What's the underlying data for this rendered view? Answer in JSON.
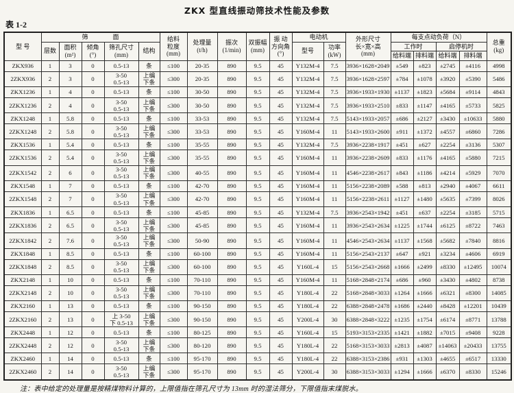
{
  "document": {
    "title": "ZKX 型直线振动筛技术性能及参数",
    "table_label": "表 1-2",
    "note": "注：表中给定的处理量是按精煤物料计算的，上限值指在筛孔尺寸为 13mm 时的湿法筛分，下限值指末煤脱水。"
  },
  "table": {
    "headers": {
      "model": "型  号",
      "sieve_group": "筛　　　　面",
      "layers": "层数",
      "area": "面积\n(m²)",
      "incline": "倾角\n(°)",
      "mesh": "筛孔尺寸\n(mm)",
      "structure": "结构",
      "feed_size": "给料\n粒度\n(mm)",
      "capacity": "处理量\n(t/h)",
      "frequency": "振次\n(1/min)",
      "amplitude": "双振幅\n(mm)",
      "direction_angle": "振 动\n方向角\n(°)",
      "motor_group": "电动机",
      "motor_model": "型号",
      "motor_power": "功率\n(kW)",
      "dimensions": "外形尺寸\n长×宽×高\n(mm)",
      "load_group": "每支点动负荷（N）",
      "load_working": "工作时",
      "load_startstop": "启停机时",
      "feed_end_1": "给料端",
      "discharge_end_1": "排料端",
      "feed_end_2": "给料端",
      "discharge_end_2": "排料端",
      "total_weight": "总重\n(kg)"
    },
    "column_keys": [
      "model",
      "layers",
      "area",
      "incline",
      "mesh",
      "structure",
      "feed_size",
      "capacity",
      "frequency",
      "amplitude",
      "direction_angle",
      "motor_model",
      "motor_power",
      "dimensions",
      "work_feed_end",
      "work_discharge_end",
      "start_feed_end",
      "start_discharge_end",
      "total_weight"
    ],
    "rows": [
      [
        "ZKX936",
        "1",
        "3",
        "0",
        "0.5-13",
        "条",
        "≤100",
        "20-35",
        "890",
        "9.5",
        "45",
        "Y132M-4",
        "7.5",
        "3936×1628×2049",
        "±549",
        "±823",
        "±2745",
        "±4116",
        "4998"
      ],
      [
        "2ZKX936",
        "2",
        "3",
        "0",
        "3-50\n0.5-13",
        "上编\n下条",
        "≤300",
        "20-35",
        "890",
        "9.5",
        "45",
        "Y132M-4",
        "7.5",
        "3936×1628×2597",
        "±784",
        "±1078",
        "±3920",
        "±5390",
        "5486"
      ],
      [
        "ZKX1236",
        "1",
        "4",
        "0",
        "0.5-13",
        "条",
        "≤100",
        "30-50",
        "890",
        "9.5",
        "45",
        "Y132M-4",
        "7.5",
        "3936×1933×1930",
        "±1137",
        "±1823",
        "±5684",
        "±9114",
        "4843"
      ],
      [
        "2ZKX1236",
        "2",
        "4",
        "0",
        "3-50\n0.5-13",
        "上编\n下条",
        "≤300",
        "30-50",
        "890",
        "9.5",
        "45",
        "Y132M-4",
        "7.5",
        "3936×1933×2510",
        "±833",
        "±1147",
        "±4165",
        "±5733",
        "5825"
      ],
      [
        "ZKX1248",
        "1",
        "5.8",
        "0",
        "0.5-13",
        "条",
        "≤100",
        "33-53",
        "890",
        "9.5",
        "45",
        "Y132M-4",
        "7.5",
        "5143×1933×2057",
        "±686",
        "±2127",
        "±3430",
        "±10633",
        "5880"
      ],
      [
        "2ZKX1248",
        "2",
        "5.8",
        "0",
        "3-50\n0.5-13",
        "上编\n下条",
        "≤300",
        "33-53",
        "890",
        "9.5",
        "45",
        "Y160M-4",
        "11",
        "5143×1933×2600",
        "±911",
        "±1372",
        "±4557",
        "±6860",
        "7286"
      ],
      [
        "ZKX1536",
        "1",
        "5.4",
        "0",
        "0.5-13",
        "条",
        "≤100",
        "35-55",
        "890",
        "9.5",
        "45",
        "Y132M-4",
        "7.5",
        "3936×2238×1917",
        "±451",
        "±627",
        "±2254",
        "±3136",
        "5307"
      ],
      [
        "2ZKX1536",
        "2",
        "5.4",
        "0",
        "3-50\n0.5-13",
        "上编\n下条",
        "≤300",
        "35-55",
        "890",
        "9.5",
        "45",
        "Y160M-4",
        "11",
        "3936×2238×2609",
        "±833",
        "±1176",
        "±4165",
        "±5880",
        "7215"
      ],
      [
        "2ZKX1542",
        "2",
        "6",
        "0",
        "3-50\n0.5-13",
        "上编\n下条",
        "≤300",
        "40-55",
        "890",
        "9.5",
        "45",
        "Y160M-4",
        "11",
        "4546×2238×2617",
        "±843",
        "±1186",
        "±4214",
        "±5929",
        "7070"
      ],
      [
        "ZKX1548",
        "1",
        "7",
        "0",
        "0.5-13",
        "条",
        "≤100",
        "42-70",
        "890",
        "9.5",
        "45",
        "Y160M-4",
        "11",
        "5156×2238×2089",
        "±588",
        "±813",
        "±2940",
        "±4067",
        "6611"
      ],
      [
        "2ZKX1548",
        "2",
        "7",
        "0",
        "3-50\n0.5-13",
        "上编\n下条",
        "≤300",
        "42-70",
        "890",
        "9.5",
        "45",
        "Y160M-4",
        "11",
        "5156×2238×2611",
        "±1127",
        "±1480",
        "±5635",
        "±7399",
        "8026"
      ],
      [
        "ZKX1836",
        "1",
        "6.5",
        "0",
        "0.5-13",
        "条",
        "≤100",
        "45-85",
        "890",
        "9.5",
        "45",
        "Y132M-4",
        "7.5",
        "3936×2543×1942",
        "±451",
        "±637",
        "±2254",
        "±3185",
        "5715"
      ],
      [
        "2ZKX1836",
        "2",
        "6.5",
        "0",
        "3-50\n0.5-13",
        "上编\n下条",
        "≤300",
        "45-85",
        "890",
        "9.5",
        "45",
        "Y160M-4",
        "11",
        "3936×2543×2634",
        "±1225",
        "±1744",
        "±6125",
        "±8722",
        "7463"
      ],
      [
        "2ZKX1842",
        "2",
        "7.6",
        "0",
        "3-50\n0.5-13",
        "上编\n下条",
        "≤300",
        "50-90",
        "890",
        "9.5",
        "45",
        "Y160M-4",
        "11",
        "4546×2543×2634",
        "±1137",
        "±1568",
        "±5682",
        "±7840",
        "8816"
      ],
      [
        "ZKX1848",
        "1",
        "8.5",
        "0",
        "0.5-13",
        "条",
        "≤100",
        "60-100",
        "890",
        "9.5",
        "45",
        "Y160M-4",
        "11",
        "5156×2543×2137",
        "±647",
        "±921",
        "±3234",
        "±4606",
        "6919"
      ],
      [
        "2ZKX1848",
        "2",
        "8.5",
        "0",
        "3-50\n0.5-13",
        "上编\n下条",
        "≤300",
        "60-100",
        "890",
        "9.5",
        "45",
        "Y160L-4",
        "15",
        "5156×2543×2668",
        "±1666",
        "±2499",
        "±8330",
        "±12495",
        "10074"
      ],
      [
        "ZKX2148",
        "1",
        "10",
        "0",
        "0.5-13",
        "条",
        "≤100",
        "70-110",
        "890",
        "9.5",
        "45",
        "Y160M-4",
        "11",
        "5168×2848×2174",
        "±686",
        "±960",
        "±3430",
        "±4802",
        "8738"
      ],
      [
        "2ZKX2148",
        "2",
        "10",
        "0",
        "3-50\n0.5-13",
        "上编\n下条",
        "≤300",
        "70-110",
        "890",
        "9.5",
        "45",
        "Y180L-4",
        "22",
        "5168×2848×3033",
        "±1264",
        "±1666",
        "±6321",
        "±8300",
        "14085"
      ],
      [
        "ZKX2160",
        "1",
        "13",
        "0",
        "0.5-13",
        "条",
        "≤100",
        "90-150",
        "890",
        "9.5",
        "45",
        "Y180L-4",
        "22",
        "6388×2848×2478",
        "±1686",
        "±2440",
        "±8428",
        "±12201",
        "10439"
      ],
      [
        "2ZKX2160",
        "2",
        "13",
        "0",
        "上 3-50\n下 0.5-13",
        "上编\n下条",
        "≤300",
        "90-150",
        "890",
        "9.5",
        "45",
        "Y200L-4",
        "30",
        "6388×2848×3222",
        "±1235",
        "±1754",
        "±6174",
        "±8771",
        "13788"
      ],
      [
        "ZKX2448",
        "1",
        "12",
        "0",
        "0.5-13",
        "条",
        "≤100",
        "80-125",
        "890",
        "9.5",
        "45",
        "Y160L-4",
        "15",
        "5193×3153×2335",
        "±1421",
        "±1882",
        "±7015",
        "±9408",
        "9228"
      ],
      [
        "2ZKX2448",
        "2",
        "12",
        "0",
        "3-50\n0.5-13",
        "上编\n下条",
        "≤300",
        "80-120",
        "890",
        "9.5",
        "45",
        "Y180L-4",
        "22",
        "5168×3153×3033",
        "±2813",
        "±4087",
        "±14063",
        "±20433",
        "13755"
      ],
      [
        "ZKX2460",
        "1",
        "14",
        "0",
        "0.5-13",
        "条",
        "≤100",
        "95-170",
        "890",
        "9.5",
        "45",
        "Y180L-4",
        "22",
        "6388×3153×2386",
        "±931",
        "±1303",
        "±4655",
        "±6517",
        "13330"
      ],
      [
        "2ZKX2460",
        "2",
        "14",
        "0",
        "3-50\n0.5-13",
        "上编\n下条",
        "≤300",
        "95-170",
        "890",
        "9.5",
        "45",
        "Y200L-4",
        "30",
        "6388×3153×3033",
        "±1294",
        "±1666",
        "±6370",
        "±8330",
        "15246"
      ]
    ]
  }
}
